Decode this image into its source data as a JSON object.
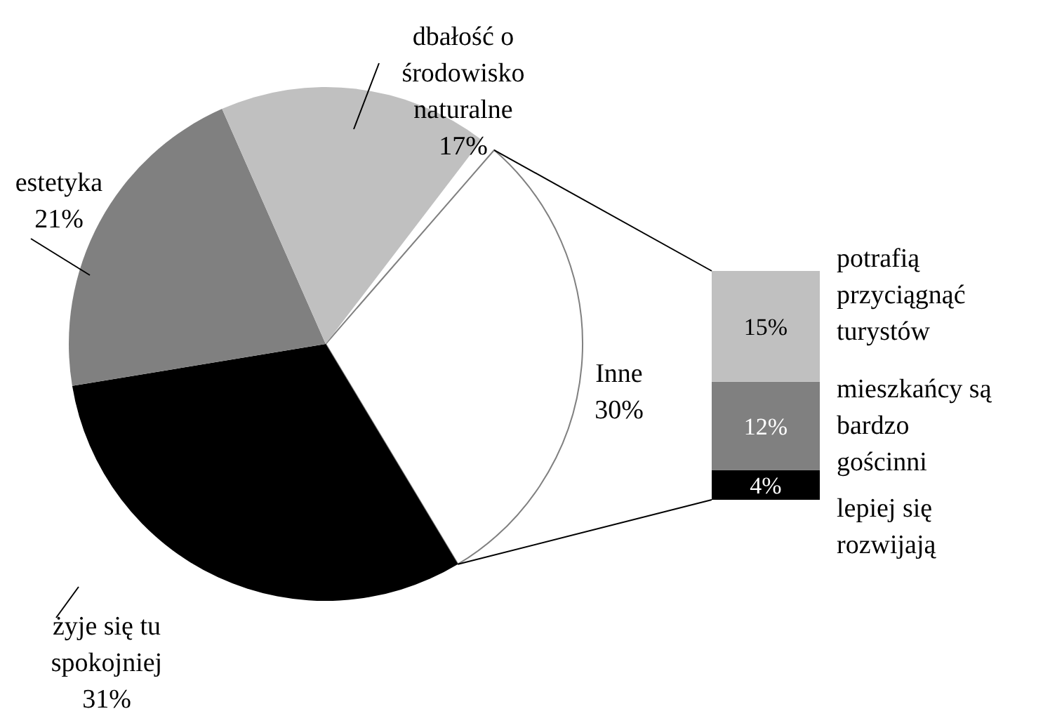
{
  "chart_data": [
    {
      "type": "pie",
      "categories": [
        "Inne",
        "żyje się tu\nspokojniej",
        "estetyka",
        "dbałość o\nśrodowisko\nnaturalne"
      ],
      "values": [
        30,
        31,
        21,
        17
      ],
      "colors": [
        "#ffffff",
        "#000000",
        "#808080",
        "#c0c0c0"
      ],
      "value_labels": [
        "30%",
        "31%",
        "21%",
        "17%"
      ]
    },
    {
      "type": "bar",
      "stacked": true,
      "categories": [
        null
      ],
      "series": [
        {
          "name": "lepiej się\nrozwijają",
          "color": "#000000",
          "values": [
            4
          ],
          "value_labels": [
            "4%"
          ]
        },
        {
          "name": "mieszkańcy są\nbardzo\ngościnni",
          "color": "#808080",
          "values": [
            12
          ],
          "value_labels": [
            "12%"
          ]
        },
        {
          "name": "potrafią\nprzyciągnąć\nturystów",
          "color": "#c0c0c0",
          "values": [
            15
          ],
          "value_labels": [
            "15%"
          ]
        }
      ]
    }
  ]
}
